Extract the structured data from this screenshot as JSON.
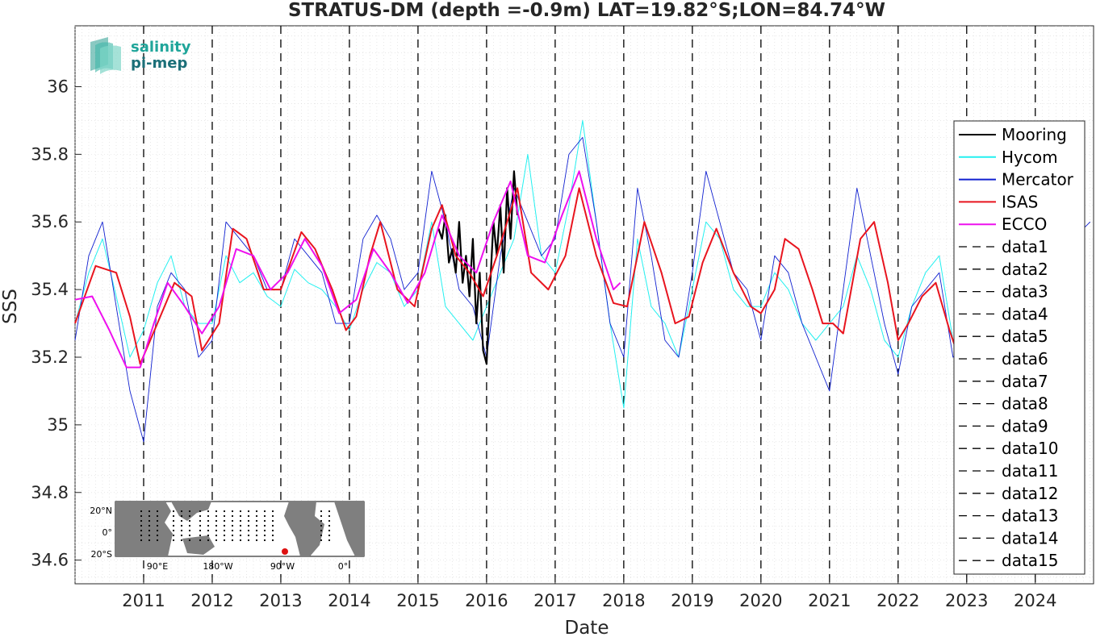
{
  "chart_data": {
    "type": "line",
    "title": "STRATUS-DM (depth =-0.9m) LAT=19.82°S;LON=84.74°W",
    "xlabel": "Date",
    "ylabel": "SSS",
    "xlim": [
      2010.0,
      2024.85
    ],
    "ylim": [
      34.53,
      36.18
    ],
    "x_ticks": [
      2011,
      2012,
      2013,
      2014,
      2015,
      2016,
      2017,
      2018,
      2019,
      2020,
      2021,
      2022,
      2023,
      2024
    ],
    "x_tick_labels": [
      "2011",
      "2012",
      "2013",
      "2014",
      "2015",
      "2016",
      "2017",
      "2018",
      "2019",
      "2020",
      "2021",
      "2022",
      "2023",
      "2024"
    ],
    "y_ticks": [
      34.6,
      34.8,
      35.0,
      35.2,
      35.4,
      35.6,
      35.8,
      36.0
    ],
    "y_tick_labels": [
      "34.6",
      "34.8",
      "35",
      "35.2",
      "35.4",
      "35.6",
      "35.8",
      "36"
    ],
    "grid": true,
    "legend_position": "right",
    "series": [
      {
        "name": "Mooring",
        "color": "#000000",
        "x": [
          2015.3,
          2015.35,
          2015.4,
          2015.45,
          2015.5,
          2015.55,
          2015.6,
          2015.65,
          2015.7,
          2015.75,
          2015.8,
          2015.85,
          2015.9,
          2015.95,
          2016.0,
          2016.05,
          2016.1,
          2016.15,
          2016.2,
          2016.25,
          2016.3,
          2016.35,
          2016.4,
          2016.45
        ],
        "y": [
          35.58,
          35.55,
          35.62,
          35.48,
          35.52,
          35.45,
          35.6,
          35.42,
          35.5,
          35.38,
          35.55,
          35.3,
          35.45,
          35.22,
          35.18,
          35.4,
          35.6,
          35.5,
          35.65,
          35.45,
          35.7,
          35.55,
          35.75,
          35.62
        ]
      },
      {
        "name": "Hycom",
        "color": "#22f0f0",
        "x": [
          2010.0,
          2010.2,
          2010.4,
          2010.6,
          2010.8,
          2011.0,
          2011.2,
          2011.4,
          2011.6,
          2011.8,
          2012.0,
          2012.2,
          2012.4,
          2012.6,
          2012.8,
          2013.0,
          2013.2,
          2013.4,
          2013.6,
          2013.8,
          2014.0,
          2014.2,
          2014.4,
          2014.6,
          2014.8,
          2015.0,
          2015.2,
          2015.4,
          2015.6,
          2015.8,
          2016.0,
          2016.2,
          2016.4,
          2016.6,
          2016.8,
          2017.0,
          2017.2,
          2017.4,
          2017.6,
          2017.8,
          2018.0,
          2018.2,
          2018.4,
          2018.6,
          2018.8,
          2019.0,
          2019.2,
          2019.4,
          2019.6,
          2019.8,
          2020.0,
          2020.2,
          2020.4,
          2020.6,
          2020.8,
          2021.0,
          2021.2,
          2021.4,
          2021.6,
          2021.8,
          2022.0,
          2022.2,
          2022.4,
          2022.6,
          2022.8
        ],
        "y": [
          35.3,
          35.45,
          35.55,
          35.38,
          35.2,
          35.28,
          35.42,
          35.5,
          35.35,
          35.3,
          35.3,
          35.5,
          35.42,
          35.45,
          35.38,
          35.35,
          35.46,
          35.42,
          35.4,
          35.35,
          35.28,
          35.4,
          35.48,
          35.45,
          35.35,
          35.4,
          35.6,
          35.35,
          35.3,
          35.25,
          35.35,
          35.45,
          35.55,
          35.8,
          35.5,
          35.45,
          35.65,
          35.9,
          35.6,
          35.3,
          35.05,
          35.55,
          35.35,
          35.3,
          35.2,
          35.4,
          35.6,
          35.55,
          35.4,
          35.35,
          35.35,
          35.45,
          35.4,
          35.3,
          35.25,
          35.3,
          35.35,
          35.5,
          35.4,
          35.25,
          35.2,
          35.35,
          35.45,
          35.5,
          35.25
        ]
      },
      {
        "name": "Mercator",
        "color": "#1020d0",
        "x": [
          2010.0,
          2010.2,
          2010.4,
          2010.6,
          2010.8,
          2011.0,
          2011.2,
          2011.4,
          2011.6,
          2011.8,
          2012.0,
          2012.2,
          2012.4,
          2012.6,
          2012.8,
          2013.0,
          2013.2,
          2013.4,
          2013.6,
          2013.8,
          2014.0,
          2014.2,
          2014.4,
          2014.6,
          2014.8,
          2015.0,
          2015.2,
          2015.4,
          2015.6,
          2015.8,
          2016.0,
          2016.2,
          2016.4,
          2016.6,
          2016.8,
          2017.0,
          2017.2,
          2017.4,
          2017.6,
          2017.8,
          2018.0,
          2018.2,
          2018.4,
          2018.6,
          2018.8,
          2019.0,
          2019.2,
          2019.4,
          2019.6,
          2019.8,
          2020.0,
          2020.2,
          2020.4,
          2020.6,
          2020.8,
          2021.0,
          2021.2,
          2021.4,
          2021.6,
          2021.8,
          2022.0,
          2022.2,
          2022.4,
          2022.6,
          2022.8,
          2024.8
        ],
        "y": [
          35.25,
          35.5,
          35.6,
          35.35,
          35.1,
          34.95,
          35.35,
          35.45,
          35.4,
          35.2,
          35.25,
          35.6,
          35.55,
          35.5,
          35.4,
          35.4,
          35.55,
          35.5,
          35.45,
          35.3,
          35.3,
          35.55,
          35.62,
          35.55,
          35.4,
          35.45,
          35.75,
          35.6,
          35.4,
          35.35,
          35.2,
          35.5,
          35.7,
          35.6,
          35.5,
          35.55,
          35.8,
          35.85,
          35.6,
          35.3,
          35.2,
          35.7,
          35.5,
          35.25,
          35.2,
          35.45,
          35.75,
          35.6,
          35.45,
          35.4,
          35.25,
          35.5,
          35.45,
          35.3,
          35.2,
          35.1,
          35.4,
          35.7,
          35.5,
          35.3,
          35.15,
          35.35,
          35.4,
          35.45,
          35.2,
          35.6
        ]
      },
      {
        "name": "ISAS",
        "color": "#e8141e",
        "x": [
          2010.0,
          2010.3,
          2010.6,
          2010.8,
          2010.95,
          2011.2,
          2011.45,
          2011.7,
          2011.85,
          2012.1,
          2012.3,
          2012.5,
          2012.75,
          2013.0,
          2013.3,
          2013.5,
          2013.75,
          2013.95,
          2014.1,
          2014.3,
          2014.45,
          2014.7,
          2014.95,
          2015.2,
          2015.35,
          2015.55,
          2015.75,
          2015.95,
          2016.15,
          2016.45,
          2016.65,
          2016.9,
          2017.15,
          2017.35,
          2017.6,
          2017.85,
          2018.05,
          2018.3,
          2018.55,
          2018.75,
          2018.95,
          2019.15,
          2019.35,
          2019.6,
          2019.85,
          2020.0,
          2020.2,
          2020.35,
          2020.55,
          2020.75,
          2020.9,
          2021.05,
          2021.2,
          2021.45,
          2021.65,
          2021.85,
          2022.0,
          2022.15,
          2022.35,
          2022.55,
          2022.75,
          2022.85
        ],
        "y": [
          35.3,
          35.47,
          35.45,
          35.32,
          35.18,
          35.3,
          35.42,
          35.38,
          35.22,
          35.3,
          35.58,
          35.55,
          35.4,
          35.4,
          35.57,
          35.52,
          35.4,
          35.28,
          35.32,
          35.5,
          35.6,
          35.4,
          35.35,
          35.58,
          35.65,
          35.5,
          35.45,
          35.38,
          35.5,
          35.7,
          35.45,
          35.4,
          35.5,
          35.7,
          35.5,
          35.36,
          35.35,
          35.6,
          35.45,
          35.3,
          35.32,
          35.48,
          35.58,
          35.45,
          35.35,
          35.33,
          35.4,
          35.55,
          35.52,
          35.4,
          35.3,
          35.3,
          35.27,
          35.55,
          35.6,
          35.42,
          35.25,
          35.3,
          35.38,
          35.42,
          35.28,
          35.22
        ]
      },
      {
        "name": "ECCO",
        "color": "#ee10ee",
        "x": [
          2010.0,
          2010.25,
          2010.5,
          2010.75,
          2010.95,
          2011.15,
          2011.35,
          2011.6,
          2011.85,
          2012.1,
          2012.35,
          2012.6,
          2012.85,
          2013.1,
          2013.35,
          2013.6,
          2013.85,
          2014.1,
          2014.35,
          2014.6,
          2014.85,
          2015.1,
          2015.35,
          2015.6,
          2015.85,
          2016.1,
          2016.35,
          2016.6,
          2016.85,
          2017.1,
          2017.35,
          2017.6,
          2017.85,
          2017.95
        ],
        "y": [
          35.37,
          35.38,
          35.28,
          35.17,
          35.17,
          35.3,
          35.42,
          35.35,
          35.27,
          35.35,
          35.52,
          35.5,
          35.4,
          35.45,
          35.55,
          35.47,
          35.33,
          35.37,
          35.52,
          35.45,
          35.36,
          35.45,
          35.62,
          35.5,
          35.45,
          35.6,
          35.72,
          35.5,
          35.48,
          35.62,
          35.75,
          35.55,
          35.4,
          35.42
        ]
      }
    ],
    "legend_entries": [
      "Mooring",
      "Hycom",
      "Mercator",
      "ISAS",
      "ECCO",
      "data1",
      "data2",
      "data3",
      "data4",
      "data5",
      "data6",
      "data7",
      "data8",
      "data9",
      "data10",
      "data11",
      "data12",
      "data13",
      "data14",
      "data15"
    ],
    "vertical_lines_x": [
      2011.0,
      2012.0,
      2013.0,
      2014.0,
      2015.0,
      2016.0,
      2017.0,
      2018.0,
      2019.0,
      2020.0,
      2021.0,
      2022.0,
      2023.0,
      2024.0
    ],
    "logo": {
      "line1": "salinity",
      "line2": "pi-mep"
    },
    "inset_map": {
      "lat_labels": [
        "20°N",
        "0°",
        "20°S"
      ],
      "lon_labels": [
        "90°E",
        "180°W",
        "90°W",
        "0°"
      ],
      "marker_color": "#dd1111"
    }
  }
}
